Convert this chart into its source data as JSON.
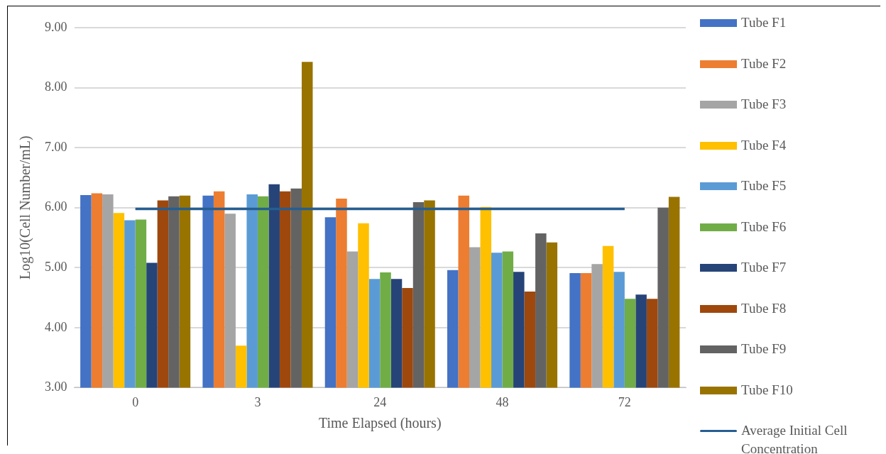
{
  "chart_data": {
    "type": "bar",
    "xlabel": "Time Elapsed (hours)",
    "ylabel": "Log10(Cell Number/mL)",
    "categories": [
      "0",
      "3",
      "24",
      "48",
      "72"
    ],
    "ylim": [
      3,
      9
    ],
    "yticks": [
      {
        "value": 3,
        "label": "3.00"
      },
      {
        "value": 4,
        "label": "4.00"
      },
      {
        "value": 5,
        "label": "5.00"
      },
      {
        "value": 6,
        "label": "6.00"
      },
      {
        "value": 7,
        "label": "7.00"
      },
      {
        "value": 8,
        "label": "8.00"
      },
      {
        "value": 9,
        "label": "9.00"
      }
    ],
    "grid": "y",
    "legend": "right",
    "series": [
      {
        "name": "Tube F1",
        "color": "#4472c4",
        "values": [
          6.21,
          6.2,
          5.84,
          4.96,
          4.91
        ]
      },
      {
        "name": "Tube F2",
        "color": "#ed7d31",
        "values": [
          6.24,
          6.27,
          6.15,
          6.2,
          4.91
        ]
      },
      {
        "name": "Tube F3",
        "color": "#a5a5a5",
        "values": [
          6.22,
          5.9,
          5.27,
          5.34,
          5.06
        ]
      },
      {
        "name": "Tube F4",
        "color": "#ffc000",
        "values": [
          5.91,
          3.7,
          5.74,
          6.01,
          5.36
        ]
      },
      {
        "name": "Tube F5",
        "color": "#5b9bd5",
        "values": [
          5.79,
          6.22,
          4.81,
          5.25,
          4.93
        ]
      },
      {
        "name": "Tube F6",
        "color": "#70ad47",
        "values": [
          5.8,
          6.19,
          4.92,
          5.27,
          4.48
        ]
      },
      {
        "name": "Tube F7",
        "color": "#264478",
        "values": [
          5.08,
          6.39,
          4.81,
          4.93,
          4.55
        ]
      },
      {
        "name": "Tube F8",
        "color": "#9e480e",
        "values": [
          6.12,
          6.27,
          4.66,
          4.6,
          4.48
        ]
      },
      {
        "name": "Tube F9",
        "color": "#636363",
        "values": [
          6.19,
          6.32,
          6.09,
          5.57,
          6.0
        ]
      },
      {
        "name": "Tube F10",
        "color": "#997300",
        "values": [
          6.2,
          8.43,
          6.12,
          5.42,
          6.18
        ]
      },
      {
        "name": "Average Initial Cell Concentration",
        "type": "line",
        "color": "#255e91",
        "values": [
          5.98,
          5.98,
          5.98,
          5.98,
          5.98
        ]
      }
    ]
  }
}
